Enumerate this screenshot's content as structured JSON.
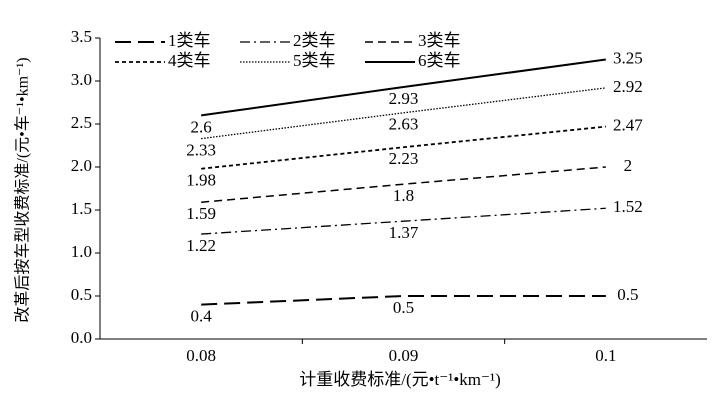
{
  "chart_data": {
    "type": "line",
    "x_label": "计重收费标准/(元•t⁻¹•km⁻¹)",
    "y_label": "改革后按车型收费标准/(元•车⁻¹•km⁻¹)",
    "categories": [
      "0.08",
      "0.09",
      "0.1"
    ],
    "ylim": [
      0,
      3.5
    ],
    "yticks": [
      {
        "value": 0,
        "label": "0.0"
      },
      0.5,
      {
        "value": 1,
        "label": "1.0"
      },
      1.5,
      {
        "value": 2,
        "label": "2.0"
      },
      2.5,
      {
        "value": 3,
        "label": "3.0"
      },
      3.5
    ],
    "series": [
      {
        "name": "1类车",
        "color": "#000000",
        "dash": "16 7",
        "width": 2,
        "values": [
          0.4,
          0.5,
          0.5
        ]
      },
      {
        "name": "2类车",
        "color": "#000000",
        "dash": "10 4 2 4",
        "width": 1.3,
        "values": [
          1.22,
          1.37,
          1.52
        ]
      },
      {
        "name": "3类车",
        "color": "#000000",
        "dash": "8 5",
        "width": 1.5,
        "values": [
          1.59,
          1.8,
          2
        ]
      },
      {
        "name": "4类车",
        "color": "#000000",
        "dash": "4 3",
        "width": 1.8,
        "values": [
          1.98,
          2.23,
          2.47
        ]
      },
      {
        "name": "5类车",
        "color": "#000000",
        "dash": "1.5 1.5",
        "width": 1.3,
        "values": [
          2.33,
          2.63,
          2.92
        ]
      },
      {
        "name": "6类车",
        "color": "#000000",
        "dash": "",
        "width": 2,
        "values": [
          2.6,
          2.93,
          3.25
        ]
      }
    ]
  }
}
